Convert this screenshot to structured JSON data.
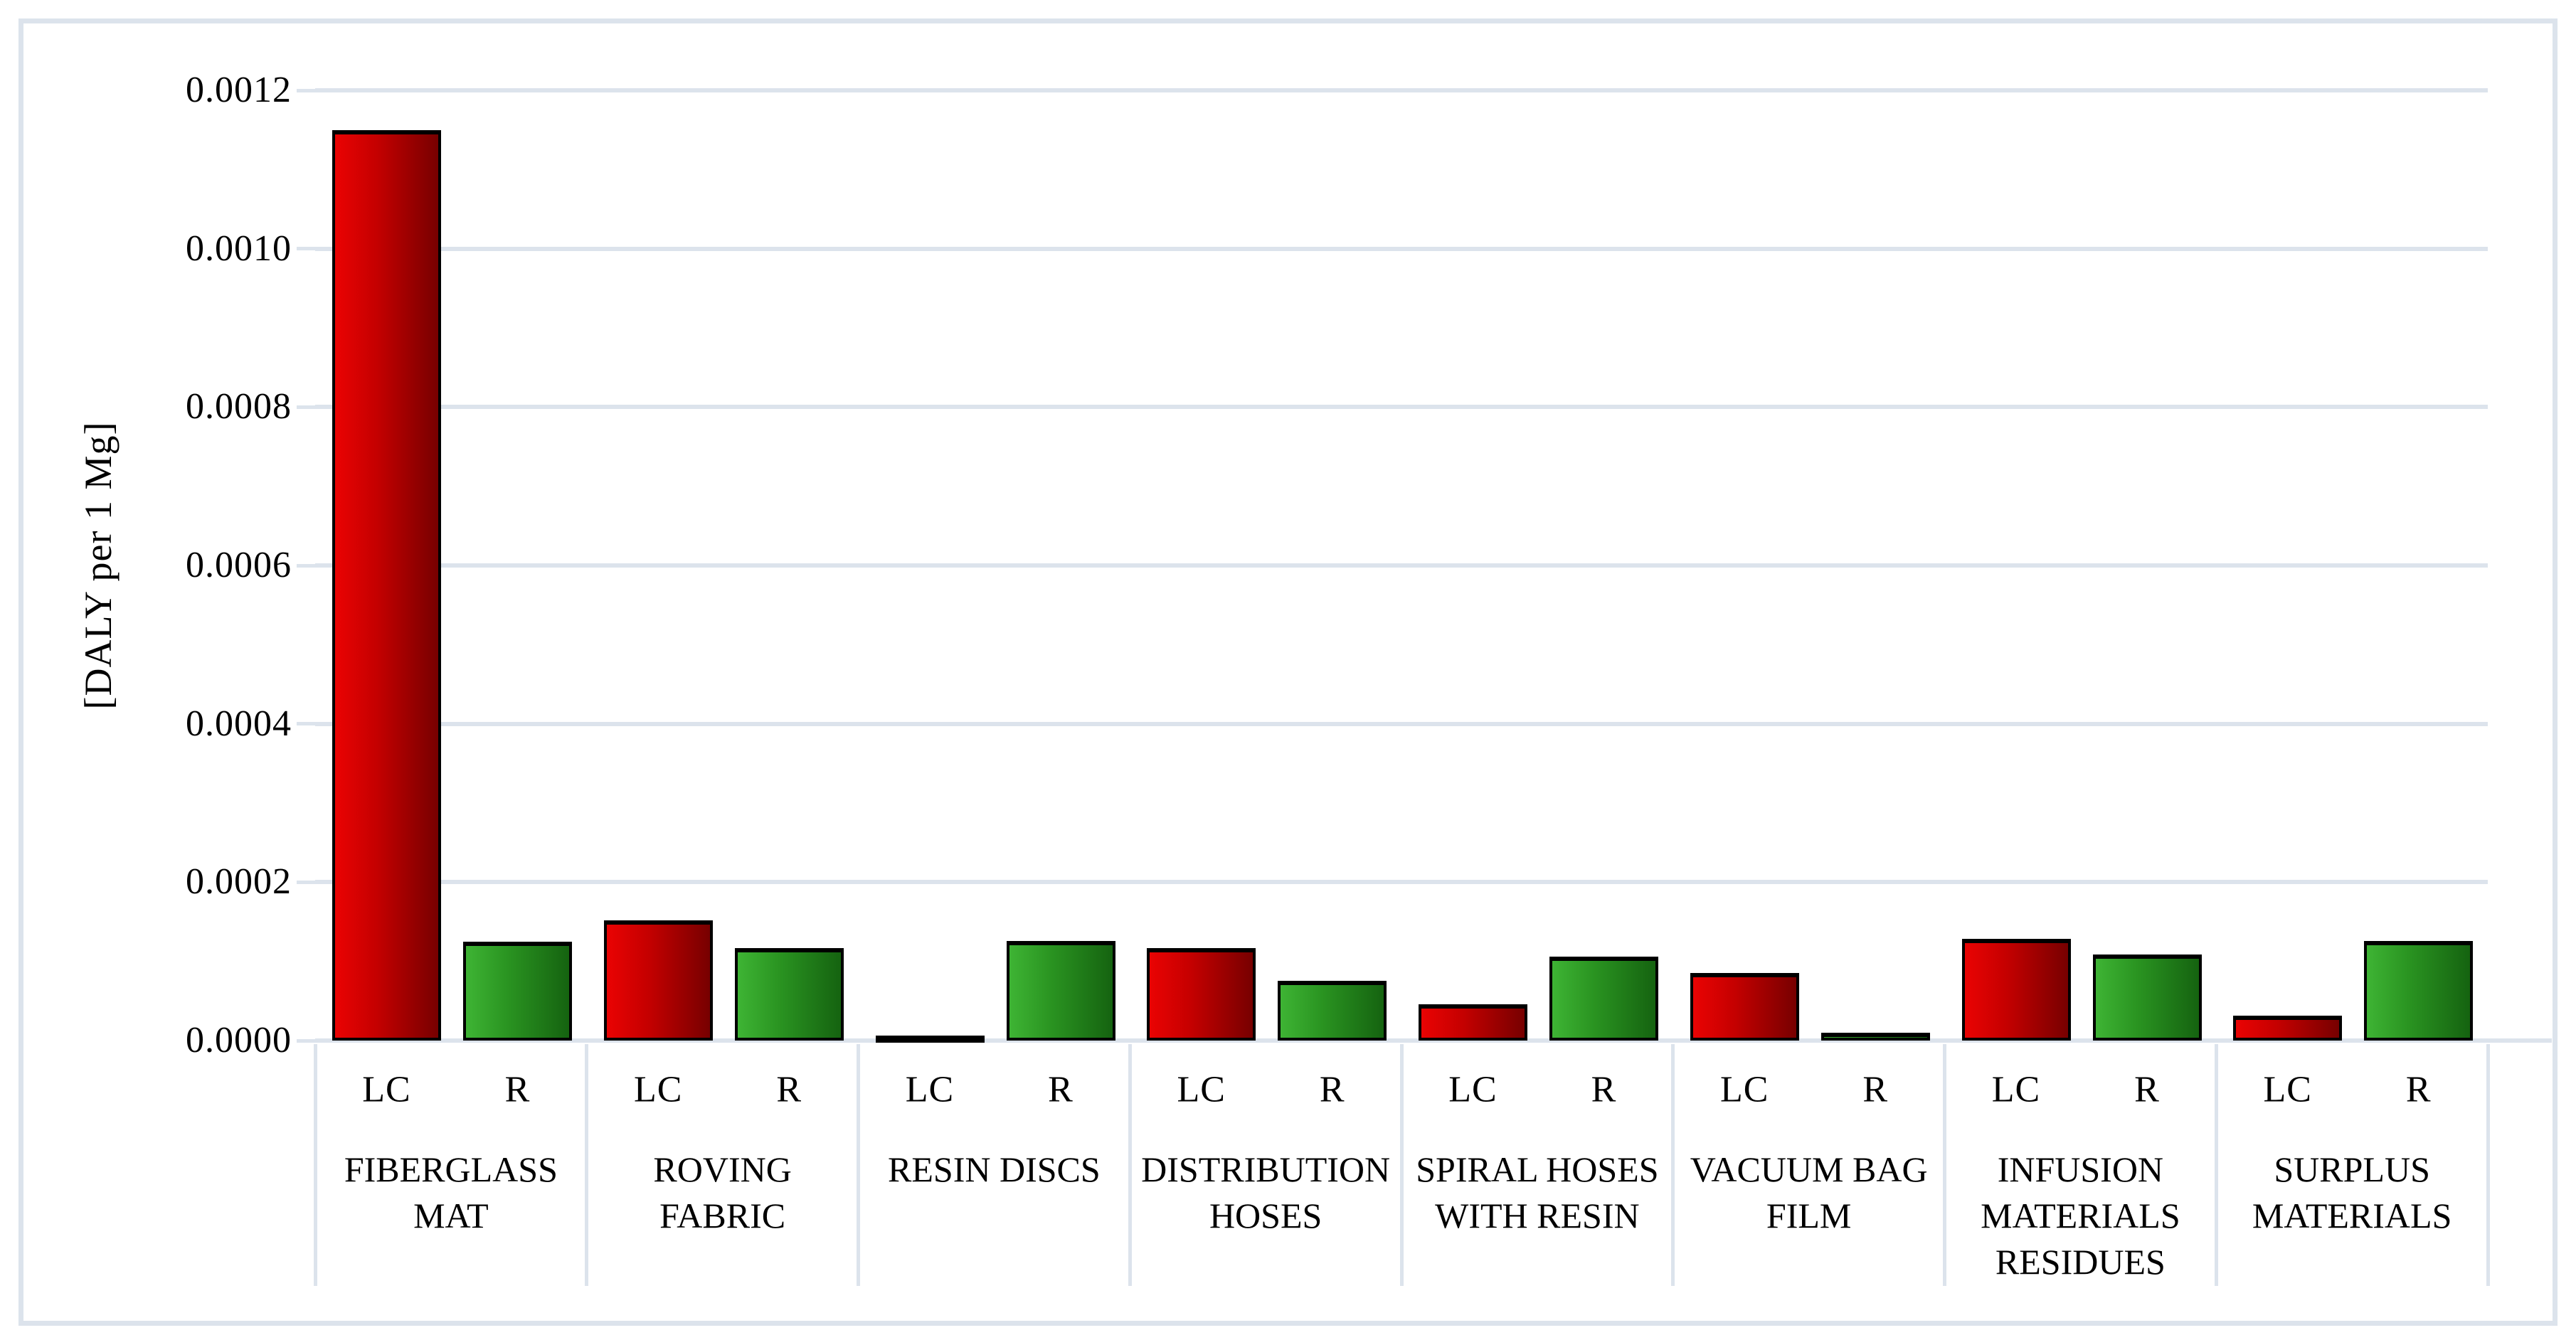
{
  "figure": {
    "background": "#ffffff",
    "frame_color": "#dce3ec"
  },
  "y_axis": {
    "title": "[DALY per 1 Mg]",
    "tick_labels": [
      "0.0012",
      "0.0010",
      "0.0008",
      "0.0006",
      "0.0004",
      "0.0002",
      "0.0000"
    ]
  },
  "colors": {
    "background": "#ffffff",
    "grid": "#dce3ec",
    "text": "#000000",
    "bar_border": "#000000",
    "lc_gradient": [
      "#ea0303",
      "#c50000",
      "#770000"
    ],
    "r_gradient": [
      "#3eb434",
      "#2a9421",
      "#156310"
    ]
  },
  "chart_data": {
    "type": "bar",
    "title": "",
    "xlabel": "",
    "ylabel": "[DALY per 1 Mg]",
    "ylim": [
      0,
      0.0012
    ],
    "ytick_interval": 0.0002,
    "grid": true,
    "legend_position": "none",
    "units": "DALY per 1 Mg",
    "bar_sublabels": [
      "LC",
      "R"
    ],
    "categories": [
      "FIBERGLASS MAT",
      "ROVING FABRIC",
      "RESIN DISCS",
      "DISTRIBUTION HOSES",
      "SPIRAL HOSES WITH RESIN",
      "VACUUM BAG FILM",
      "INFUSION MATERIALS RESIDUES",
      "SURPLUS MATERIALS"
    ],
    "category_label_lines": [
      [
        "FIBERGLASS",
        "MAT"
      ],
      [
        "ROVING",
        "FABRIC"
      ],
      [
        "RESIN DISCS"
      ],
      [
        "DISTRIBUTION",
        "HOSES"
      ],
      [
        "SPIRAL HOSES",
        "WITH RESIN"
      ],
      [
        "VACUUM BAG",
        "FILM"
      ],
      [
        "INFUSION",
        "MATERIALS",
        "RESIDUES"
      ],
      [
        "SURPLUS",
        "MATERIALS"
      ]
    ],
    "series": [
      {
        "name": "LC",
        "values": [
          0.00115,
          0.000152,
          4e-06,
          0.000117,
          4.6e-05,
          8.5e-05,
          0.000128,
          3.1e-05
        ]
      },
      {
        "name": "R",
        "values": [
          0.000125,
          0.000117,
          0.000126,
          7.5e-05,
          0.000106,
          1e-05,
          0.000109,
          0.000126
        ]
      }
    ]
  }
}
